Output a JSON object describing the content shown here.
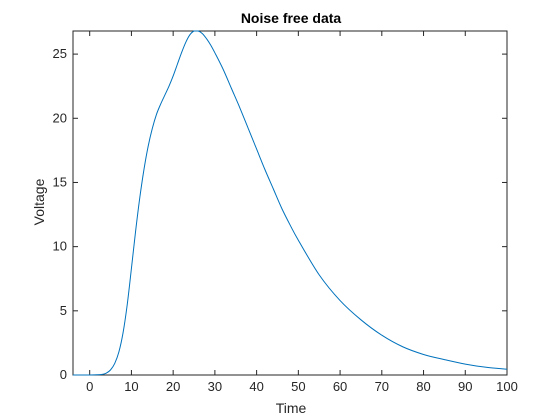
{
  "chart_data": {
    "type": "line",
    "title": "Noise free data",
    "xlabel": "Time",
    "ylabel": "Voltage",
    "xlim": [
      -4,
      100
    ],
    "ylim": [
      0,
      26.8
    ],
    "xticks": [
      0,
      10,
      20,
      30,
      40,
      50,
      60,
      70,
      80,
      90,
      100
    ],
    "yticks": [
      0,
      5,
      10,
      15,
      20,
      25
    ],
    "grid": false,
    "line_color": "#0072BD",
    "axis_color": "#262626",
    "series": [
      {
        "x": [
          -4,
          0,
          3,
          4,
          5,
          6,
          7,
          8,
          9,
          10,
          11,
          12,
          13,
          14,
          15,
          16,
          17,
          18,
          19,
          20,
          21,
          22,
          23,
          24,
          25,
          26,
          27,
          28,
          29,
          30,
          32,
          34,
          36,
          38,
          40,
          42,
          44,
          46,
          48,
          50,
          55,
          60,
          65,
          70,
          75,
          80,
          85,
          90,
          95,
          100
        ],
        "y": [
          0,
          0,
          0.05,
          0.15,
          0.4,
          0.9,
          1.8,
          3.3,
          5.5,
          8.3,
          11.2,
          13.8,
          16.0,
          17.8,
          19.2,
          20.3,
          21.1,
          21.8,
          22.5,
          23.3,
          24.2,
          25.1,
          25.9,
          26.5,
          26.8,
          26.8,
          26.6,
          26.2,
          25.7,
          25.1,
          23.8,
          22.3,
          20.8,
          19.2,
          17.6,
          16.0,
          14.5,
          13.0,
          11.7,
          10.5,
          7.8,
          5.8,
          4.3,
          3.1,
          2.2,
          1.6,
          1.2,
          0.85,
          0.6,
          0.45
        ]
      }
    ]
  }
}
